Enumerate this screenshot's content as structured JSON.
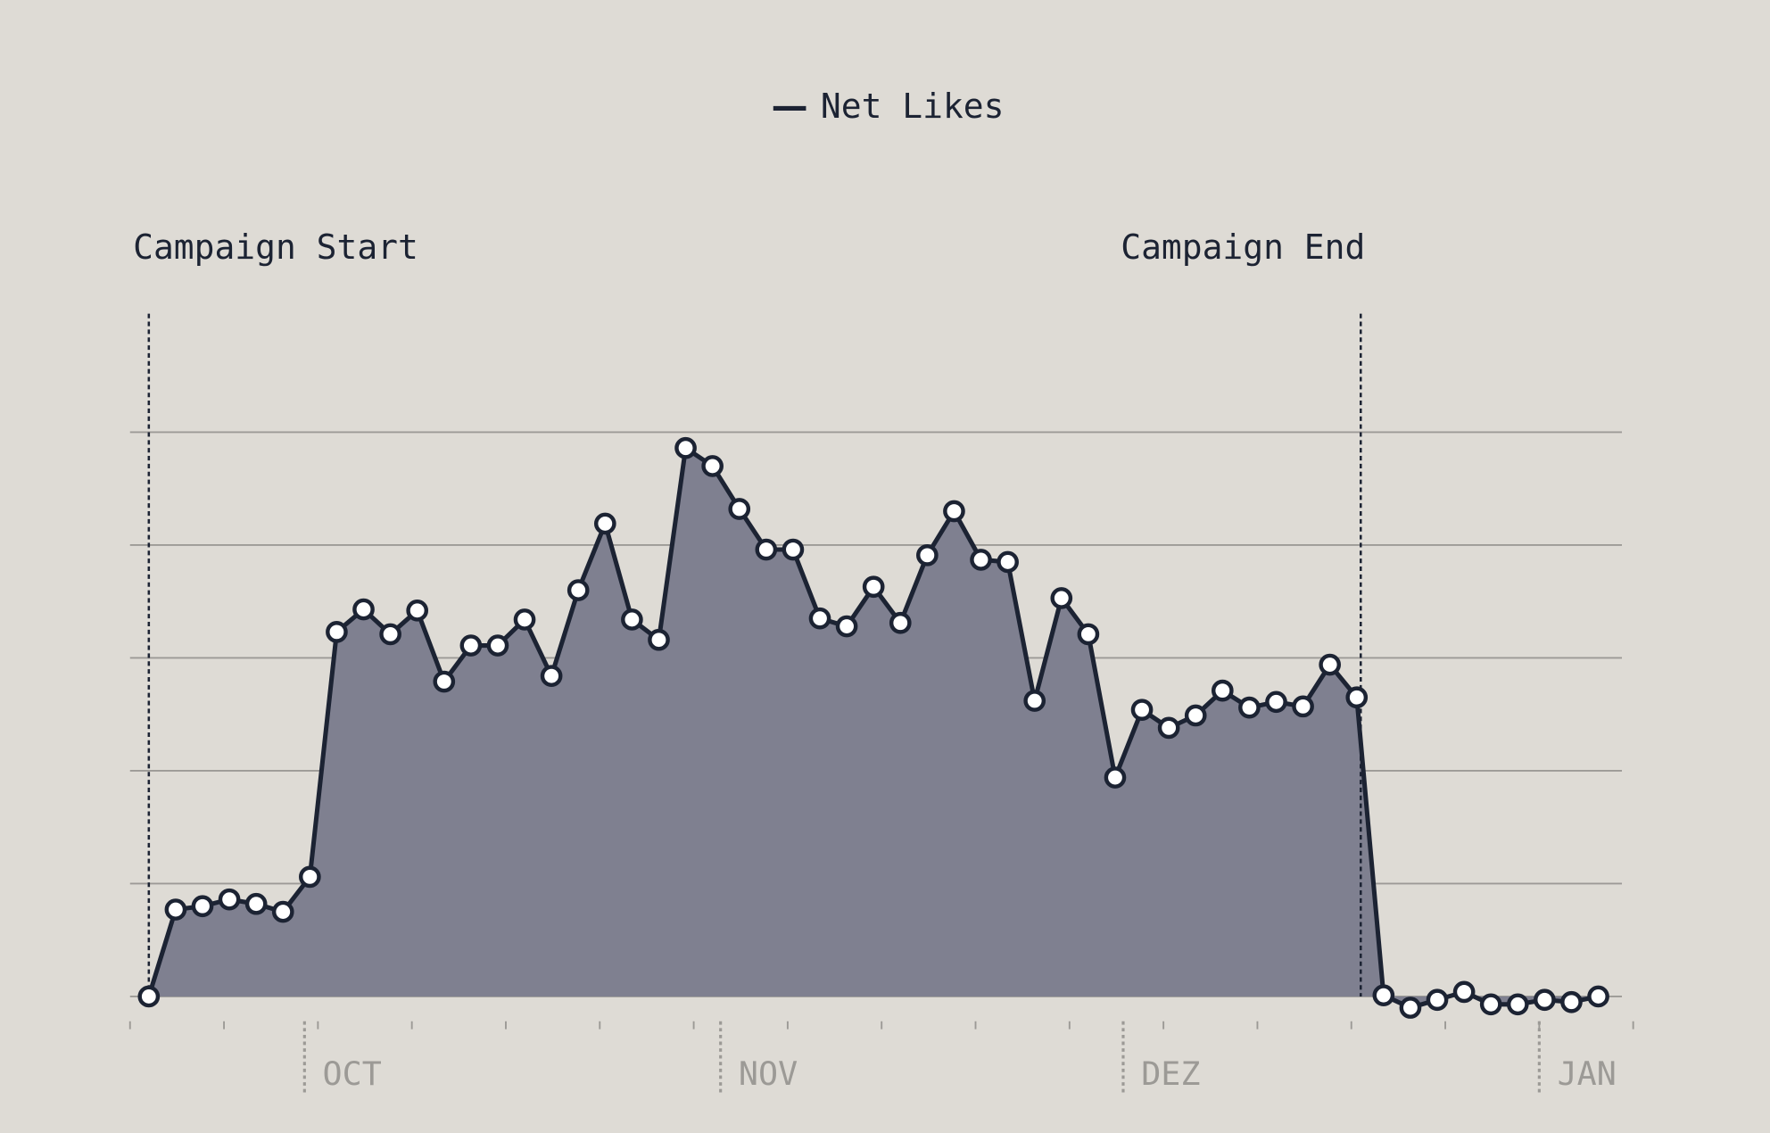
{
  "chart_data": {
    "type": "area",
    "legend_position": "top",
    "grid": true,
    "background": "#dedbd5",
    "series": [
      {
        "name": "Net Likes",
        "color": "#1c2333",
        "fill": "#7f8090",
        "x": [
          1.4,
          3.4,
          5.4,
          7.4,
          9.4,
          11.4,
          13.4,
          15.4,
          17.4,
          19.4,
          21.4,
          23.4,
          25.4,
          27.4,
          29.4,
          31.4,
          33.4,
          35.4,
          37.4,
          39.4,
          41.4,
          43.4,
          45.4,
          47.4,
          49.4,
          51.4,
          53.4,
          55.4,
          57.4,
          59.4,
          61.4,
          63.4,
          65.4,
          67.4,
          69.4,
          71.4,
          73.4,
          75.4,
          77.4,
          79.4,
          81.4,
          83.4,
          85.4,
          87.4,
          89.4,
          91.4,
          93.4,
          95.4,
          97.4,
          99.4,
          101.4,
          103.4,
          105.4,
          107.4,
          109.4
        ],
        "values": [
          0,
          0.77,
          0.8,
          0.86,
          0.82,
          0.75,
          1.06,
          3.23,
          3.43,
          3.21,
          3.42,
          2.79,
          3.11,
          3.11,
          3.34,
          2.84,
          3.6,
          4.19,
          3.34,
          3.16,
          4.86,
          4.7,
          4.32,
          3.96,
          3.96,
          3.35,
          3.28,
          3.63,
          3.31,
          3.91,
          4.3,
          3.87,
          3.85,
          2.62,
          3.53,
          3.21,
          1.94,
          2.54,
          2.38,
          2.49,
          2.71,
          2.56,
          2.61,
          2.57,
          2.94,
          2.65,
          0.01,
          -0.1,
          -0.03,
          0.04,
          -0.07,
          -0.07,
          -0.03,
          -0.05,
          0
        ]
      }
    ],
    "xlim": [
      0,
      112
    ],
    "ylim": [
      -0.22,
      6.05
    ],
    "yticks": [
      0,
      1,
      2,
      3,
      4,
      5
    ],
    "xticks": [
      {
        "value": 13,
        "label": "OCT"
      },
      {
        "value": 44,
        "label": "NOV"
      },
      {
        "value": 74,
        "label": "DEZ"
      },
      {
        "value": 105,
        "label": "JAN"
      }
    ],
    "x_minor_ticks": [
      0,
      7,
      14,
      21,
      28,
      35,
      42,
      49,
      56,
      63,
      70,
      77,
      84,
      91,
      98,
      105,
      112
    ],
    "annotations": [
      {
        "label": "Campaign Start",
        "x": 1.4,
        "align": "start"
      },
      {
        "label": "Campaign End",
        "x": 91.7,
        "align": "end"
      }
    ]
  }
}
